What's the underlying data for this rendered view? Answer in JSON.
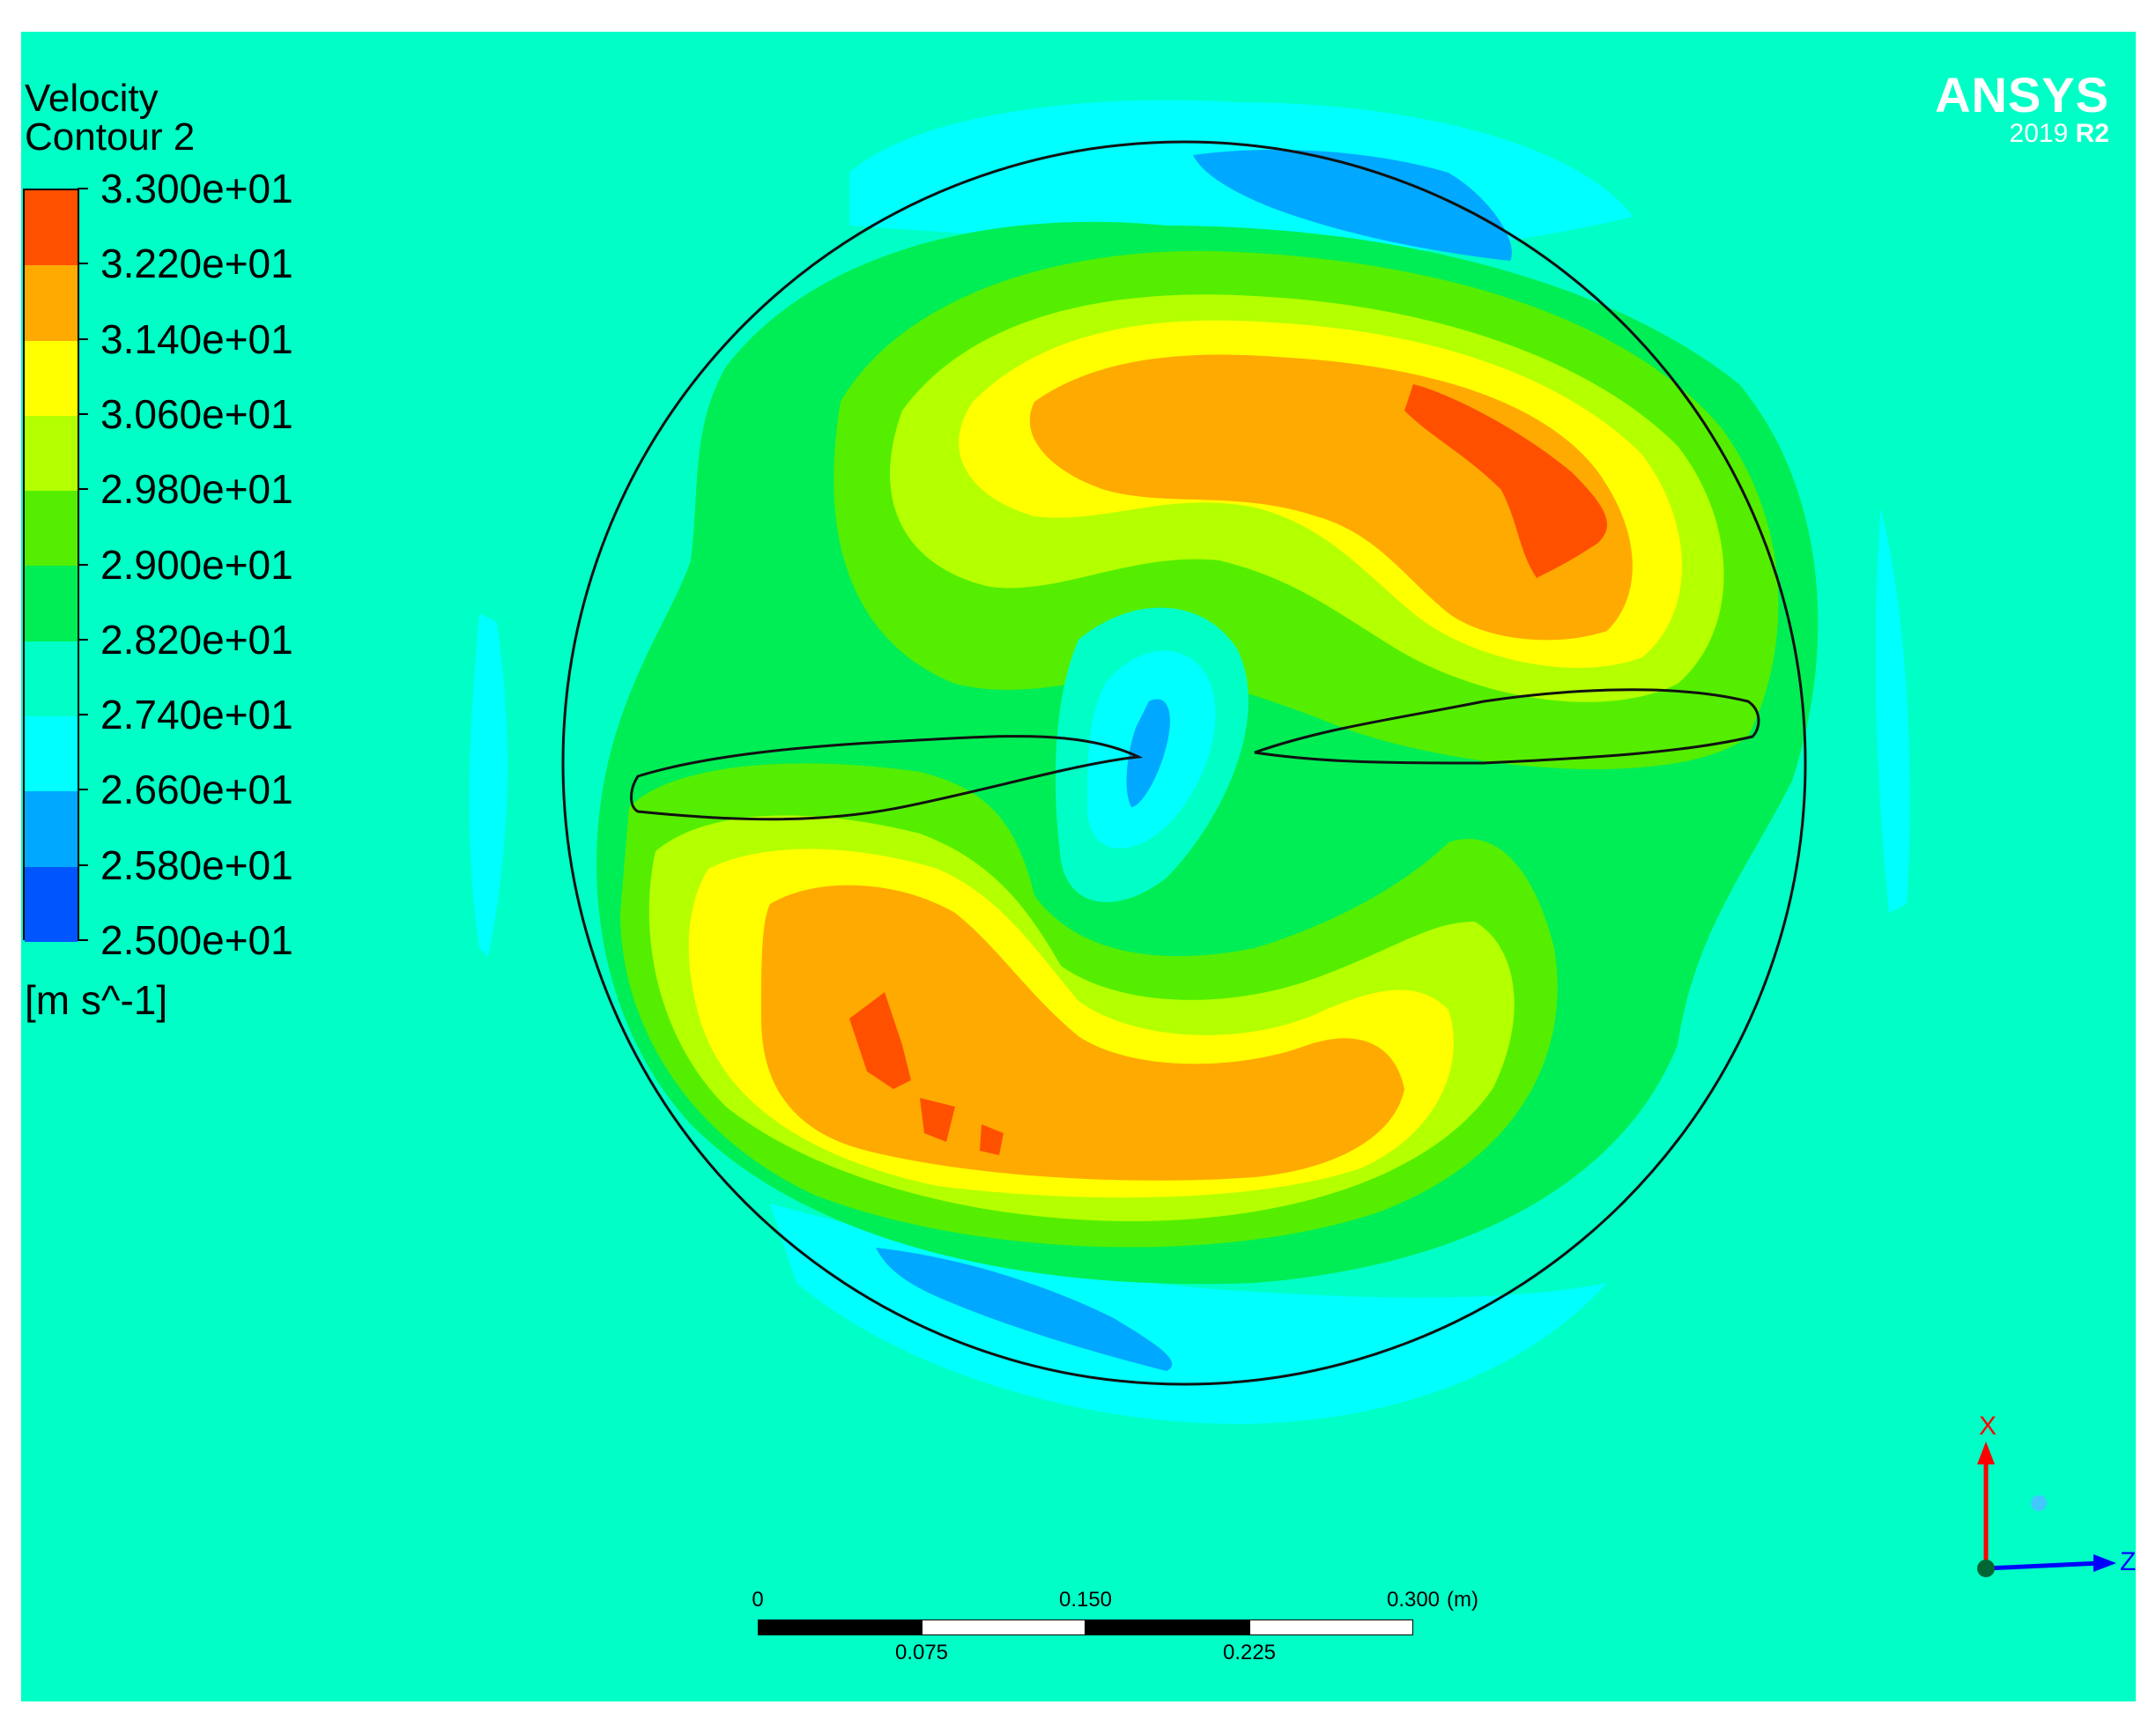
{
  "legend": {
    "title_line1": "Velocity",
    "title_line2": "Contour 2",
    "unit": "[m s^-1]",
    "ticks": [
      "3.300e+01",
      "3.220e+01",
      "3.140e+01",
      "3.060e+01",
      "2.980e+01",
      "2.900e+01",
      "2.820e+01",
      "2.740e+01",
      "2.660e+01",
      "2.580e+01",
      "2.500e+01"
    ],
    "band_colors": [
      "#ff5000",
      "#ffaa00",
      "#ffff00",
      "#b4ff00",
      "#55ee00",
      "#00ee55",
      "#00ffc6",
      "#00ffff",
      "#00a8ff",
      "#0055ff"
    ]
  },
  "branding": {
    "name": "ANSYS",
    "version": "2019",
    "release": "R2"
  },
  "axes_triad": {
    "x_label": "X",
    "z_label": "Z",
    "x_color": "#ff0000",
    "z_color": "#0000ff"
  },
  "scale_bar": {
    "top_labels": [
      "0",
      "0.150",
      "0.300"
    ],
    "unit": "(m)",
    "bottom_labels": [
      "0.075",
      "0.225"
    ]
  },
  "background_color": "#00ffc6"
}
